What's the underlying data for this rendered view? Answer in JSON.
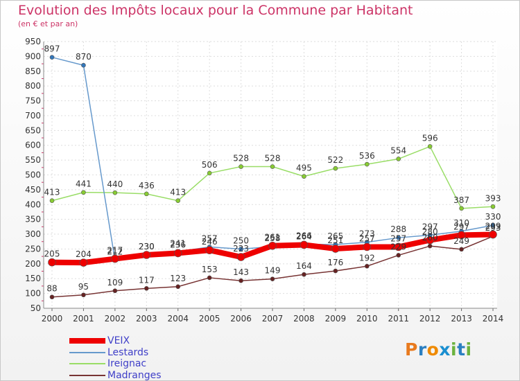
{
  "title": "Evolution des Impôts locaux pour la Commune par Habitant",
  "subtitle": "(en € et par an)",
  "logo": {
    "text": "Proxiti",
    "colors": [
      "#e87a1e",
      "#2a7fc1",
      "#ef8a00",
      "#1a8fd0",
      "#6cb33f",
      "#2a7fc1",
      "#6cb33f"
    ]
  },
  "chart_data": {
    "type": "line",
    "title": "Evolution des Impôts locaux pour la Commune par Habitant",
    "subtitle": "(en € et par an)",
    "xlabel": "",
    "ylabel": "",
    "ylim": [
      50,
      950
    ],
    "yticks": [
      50,
      100,
      150,
      200,
      250,
      300,
      350,
      400,
      450,
      500,
      550,
      600,
      650,
      700,
      750,
      800,
      850,
      900,
      950
    ],
    "categories": [
      "2000",
      "2001",
      "2002",
      "2003",
      "2004",
      "2005",
      "2006",
      "2007",
      "2008",
      "2009",
      "2010",
      "2011",
      "2012",
      "2013",
      "2014"
    ],
    "grid": true,
    "legend_position": "bottom-left",
    "series": [
      {
        "name": "Ireignac",
        "color": "#99dd66",
        "markerColor": "#88cc33",
        "width": 1.5,
        "markerR": 3,
        "values": [
          413,
          441,
          440,
          436,
          413,
          506,
          528,
          528,
          495,
          522,
          536,
          554,
          596,
          387,
          393
        ]
      },
      {
        "name": "Lestards",
        "color": "#6699cc",
        "markerColor": "#3377bb",
        "width": 1.5,
        "markerR": 3,
        "values": [
          897,
          870,
          212,
          230,
          241,
          257,
          250,
          258,
          266,
          265,
          273,
          288,
          297,
          310,
          330
        ]
      },
      {
        "name": "Madranges",
        "color": "#773333",
        "markerColor": "#662222",
        "width": 1.5,
        "markerR": 3,
        "values": [
          88,
          95,
          109,
          117,
          123,
          153,
          143,
          149,
          164,
          176,
          192,
          229,
          260,
          249,
          293
        ]
      },
      {
        "name": "VEIX",
        "color": "#ee0000",
        "markerColor": "#ee0000",
        "width": 8,
        "markerR": 5.5,
        "values": [
          205,
          204,
          217,
          230,
          236,
          246,
          223,
          261,
          264,
          251,
          257,
          257,
          280,
          297,
          299
        ]
      }
    ],
    "value_labels": [
      {
        "series": "Ireignac",
        "labels": [
          "413",
          "441",
          "440",
          "436",
          "413",
          "506",
          "528",
          "528",
          "495",
          "522",
          "536",
          "554",
          "596",
          "387",
          "393"
        ]
      },
      {
        "series": "Lestards",
        "labels": [
          "897",
          "870",
          "212",
          "230",
          "241",
          "257",
          "250",
          "258",
          "266",
          "265",
          "273",
          "288",
          "297",
          "310",
          "330"
        ]
      },
      {
        "series": "Madranges",
        "labels": [
          "88",
          "95",
          "109",
          "117",
          "123",
          "153",
          "143",
          "149",
          "164",
          "176",
          "192",
          "229",
          "260",
          "249",
          "293"
        ]
      },
      {
        "series": "VEIX",
        "labels": [
          "205",
          "204",
          "217",
          "230",
          "236",
          "246",
          "223",
          "261",
          "264",
          "251",
          "257",
          "257",
          "280",
          "297",
          "299"
        ]
      }
    ],
    "legend": [
      {
        "label": "VEIX",
        "color": "#ee0000",
        "thickness": 8
      },
      {
        "label": "Lestards",
        "color": "#6699cc",
        "thickness": 2
      },
      {
        "label": "Ireignac",
        "color": "#99dd66",
        "thickness": 2
      },
      {
        "label": "Madranges",
        "color": "#773333",
        "thickness": 2
      }
    ]
  }
}
